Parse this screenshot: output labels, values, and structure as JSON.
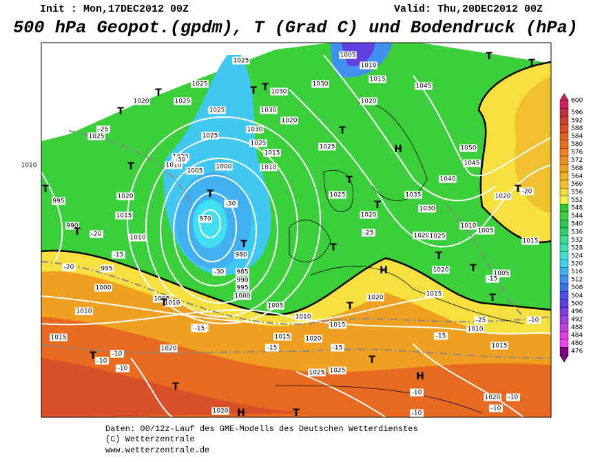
{
  "header": {
    "init": "Init : Mon,17DEC2012 00Z",
    "valid": "Valid: Thu,20DEC2012 00Z",
    "title": "500 hPa Geopot.(gpdm), T (Grad C) und Bodendruck (hPa)"
  },
  "colorbar": {
    "levels": [
      600,
      596,
      592,
      588,
      584,
      580,
      576,
      572,
      568,
      564,
      560,
      556,
      552,
      548,
      544,
      540,
      536,
      532,
      528,
      524,
      520,
      516,
      512,
      508,
      504,
      500,
      496,
      492,
      488,
      484,
      480,
      476
    ],
    "colors": [
      "#d02060",
      "#c03040",
      "#c84030",
      "#d85028",
      "#e06020",
      "#e87020",
      "#f08020",
      "#f09020",
      "#f0a020",
      "#f0b020",
      "#f0c030",
      "#f0d840",
      "#f0f040",
      "#30c830",
      "#40d040",
      "#30c850",
      "#30d070",
      "#40d890",
      "#40e0b0",
      "#40e0d0",
      "#40d0f0",
      "#40b0f0",
      "#4090f0",
      "#4070f0",
      "#5050f0",
      "#6040e0",
      "#8040e0",
      "#a040e0",
      "#c040e0",
      "#e040e0",
      "#f040f0",
      "#800080"
    ]
  },
  "map": {
    "labels": [
      "1025",
      "1005",
      "1010",
      "1015",
      "1030",
      "1025",
      "1020",
      "1025",
      "1030",
      "1045",
      "1020",
      "1025",
      "1030",
      "1020",
      "1030",
      "1025",
      "1025",
      "1025",
      "1015",
      "1025",
      "1050",
      "1020",
      "1010",
      "1005",
      "1000",
      "1010",
      "1045",
      "1010",
      "1040",
      "1020",
      "995",
      "1035",
      "1025",
      "1030",
      "1015",
      "1020",
      "990",
      "970",
      "1010",
      "1010",
      "1020",
      "1025",
      "1005",
      "1020",
      "1015",
      "980",
      "1020",
      "995",
      "1000",
      "985",
      "990",
      "995",
      "1000",
      "1005",
      "1010",
      "1005",
      "1015",
      "1005",
      "1010",
      "1010",
      "1020",
      "1015",
      "1015",
      "1015",
      "1020",
      "1015",
      "1020",
      "1010",
      "1015",
      "1025",
      "1025",
      "1020",
      "1020",
      "-25",
      "-30",
      "-30",
      "-30",
      "-20",
      "-15",
      "-20",
      "-25",
      "-15",
      "-25",
      "-10",
      "-15",
      "-15",
      "-15",
      "-15",
      "-10",
      "-10",
      "-10",
      "-10",
      "-10",
      "-10",
      "-10",
      "-20",
      "T",
      "T",
      "T",
      "T",
      "T",
      "T",
      "T",
      "T",
      "T",
      "T",
      "T",
      "T",
      "T",
      "T",
      "T",
      "T",
      "T",
      "T",
      "T",
      "T",
      "T",
      "T",
      "T",
      "T",
      "T",
      "H",
      "H",
      "H",
      "H"
    ]
  },
  "footer": {
    "lines": [
      "Daten: 00/12z-Lauf des GME-Modells des Deutschen Wetterdienstes",
      "(C) Wetterzentrale",
      "www.wetterzentrale.de"
    ]
  }
}
